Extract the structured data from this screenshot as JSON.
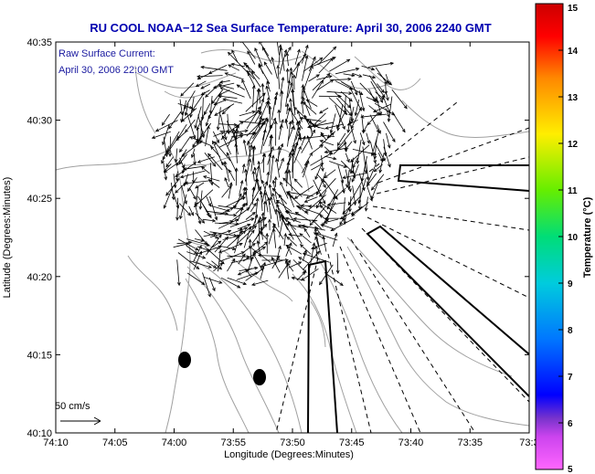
{
  "title": "RU COOL  NOAA−12  Sea Surface Temperature:  April 30, 2006 2240 GMT",
  "annotation": {
    "line1": "Raw Surface Current:",
    "line2": "April 30, 2006 22:00 GMT"
  },
  "scale": {
    "label": "50 cm/s"
  },
  "axes": {
    "xlabel": "Longitude (Degrees:Minutes)",
    "ylabel": "Latitude (Degrees:Minutes)",
    "xticks": [
      "74:10",
      "74:05",
      "74:00",
      "73:55",
      "73:50",
      "73:45",
      "73:40",
      "73:35",
      "73:3"
    ],
    "yticks": [
      "40:35",
      "40:30",
      "40:25",
      "40:20",
      "40:15",
      "40:10"
    ]
  },
  "colorbar": {
    "label": "Temperature (°C)",
    "ticks": [
      "15",
      "14",
      "13",
      "12",
      "11",
      "10",
      "9",
      "8",
      "7",
      "6",
      "5"
    ],
    "min": 5,
    "max": 15
  },
  "colors": {
    "title": "#0000b0",
    "annotation": "#1a1aa0",
    "vectors": "#000000",
    "contours": "#a0a0a0"
  }
}
